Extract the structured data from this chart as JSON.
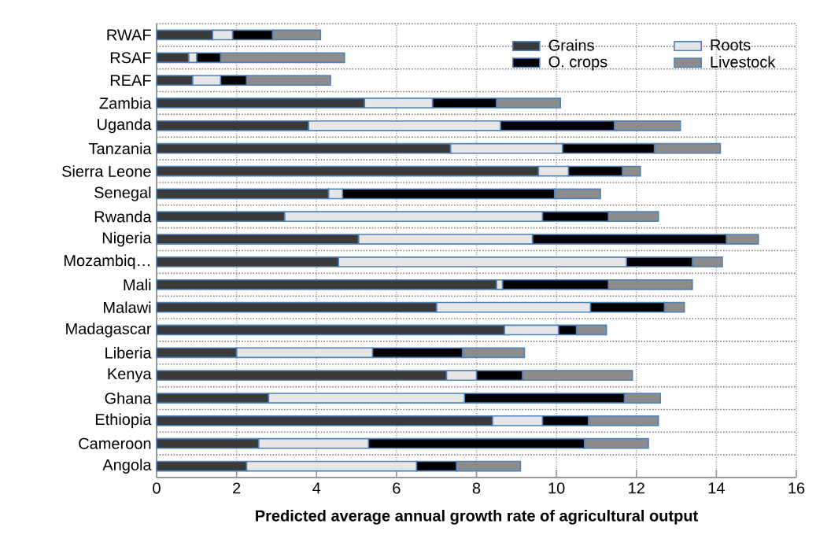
{
  "chart_data": {
    "type": "bar",
    "orientation": "horizontal",
    "stacked": true,
    "xlabel": "Predicted average annual growth rate of agricultural output",
    "categories": [
      "RWAF",
      "RSAF",
      "REAF",
      "Zambia",
      "Uganda",
      "Tanzania",
      "Sierra Leone",
      "Senegal",
      "Rwanda",
      "Nigeria",
      "Mozambiq…",
      "Mali",
      "Malawi",
      "Madagascar",
      "Liberia",
      "Kenya",
      "Ghana",
      "Ethiopia",
      "Cameroon",
      "Angola"
    ],
    "series": [
      {
        "name": "Grains",
        "color": "#3a3a3a",
        "values": [
          1.4,
          0.8,
          0.9,
          5.2,
          3.8,
          7.35,
          9.55,
          4.3,
          3.2,
          5.05,
          4.55,
          8.5,
          7.0,
          8.7,
          2.0,
          7.25,
          2.8,
          8.4,
          2.55,
          2.25
        ]
      },
      {
        "name": "Roots",
        "color": "#e6e6e6",
        "values": [
          0.5,
          0.2,
          0.7,
          1.7,
          4.8,
          2.8,
          0.75,
          0.35,
          6.45,
          4.35,
          7.2,
          0.15,
          3.85,
          1.35,
          3.4,
          0.75,
          4.9,
          1.25,
          2.75,
          4.25
        ]
      },
      {
        "name": "O. crops",
        "color": "#000000",
        "values": [
          1.0,
          0.6,
          0.65,
          1.6,
          2.85,
          2.3,
          1.35,
          5.3,
          1.65,
          4.85,
          1.65,
          2.65,
          1.85,
          0.45,
          2.25,
          1.15,
          4.0,
          1.15,
          5.4,
          1.0
        ]
      },
      {
        "name": "Livestock",
        "color": "#8c8c8c",
        "values": [
          1.2,
          3.1,
          2.1,
          1.6,
          1.65,
          1.65,
          0.45,
          1.15,
          1.25,
          0.8,
          0.75,
          2.1,
          0.5,
          0.75,
          1.55,
          2.75,
          0.9,
          1.75,
          1.6,
          1.6
        ]
      }
    ],
    "xlim": [
      0,
      16
    ],
    "xticks": [
      0,
      2,
      4,
      6,
      8,
      10,
      12,
      14,
      16
    ],
    "grid": true,
    "legend": "top right"
  }
}
